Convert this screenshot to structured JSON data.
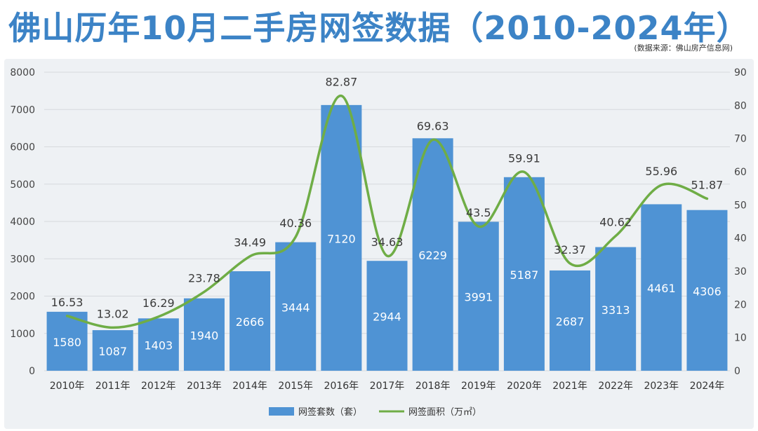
{
  "title": "佛山历年10月二手房网签数据（2010-2024年）",
  "source": "(数据来源：佛山房产信息网)",
  "colors": {
    "bar": "#4f93d4",
    "line": "#6fad46",
    "title": "#3c83c6"
  },
  "chart_data": {
    "type": "bar+line",
    "categories": [
      "2010年",
      "2011年",
      "2012年",
      "2013年",
      "2014年",
      "2015年",
      "2016年",
      "2017年",
      "2018年",
      "2019年",
      "2020年",
      "2021年",
      "2022年",
      "2023年",
      "2024年"
    ],
    "series": [
      {
        "name": "网签套数（套）",
        "type": "bar",
        "axis": "left",
        "values": [
          1580,
          1087,
          1403,
          1940,
          2666,
          3444,
          7120,
          2944,
          6229,
          3991,
          5187,
          2687,
          3313,
          4461,
          4306
        ]
      },
      {
        "name": "网签面积（万㎡）",
        "type": "line",
        "axis": "right",
        "values": [
          16.53,
          13.02,
          16.29,
          23.78,
          34.49,
          40.36,
          82.87,
          34.63,
          69.63,
          43.5,
          59.91,
          32.37,
          40.62,
          55.96,
          51.87
        ]
      }
    ],
    "y_left": {
      "min": 0,
      "max": 8000,
      "step": 1000
    },
    "y_right": {
      "min": 0,
      "max": 90,
      "step": 10
    },
    "legend_position": "bottom",
    "grid": true
  }
}
